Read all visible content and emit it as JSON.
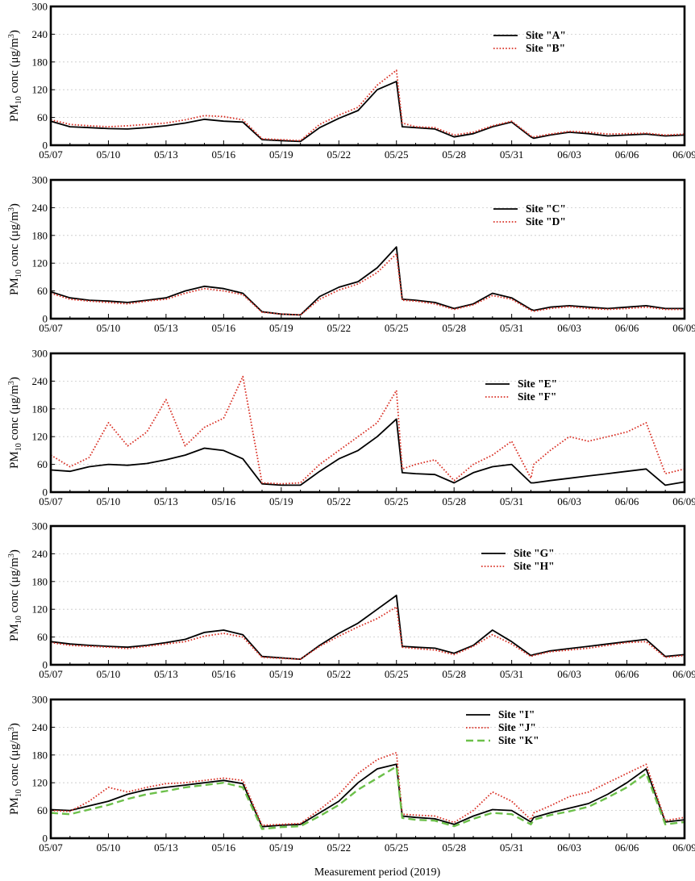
{
  "figure": {
    "x_axis_title": "Measurement period (2019)",
    "y_axis_label": {
      "main": "PM",
      "sub": "10",
      "rest": " conc (μg/m",
      "sup": "3",
      "end": ")"
    }
  },
  "colors": {
    "solid": "#000000",
    "dotted": "#d93025",
    "dashed": "#6cc04a"
  },
  "chart_data": [
    {
      "type": "line",
      "ylim": [
        0,
        300
      ],
      "yticks": [
        0,
        60,
        120,
        180,
        240,
        300
      ],
      "x_tick_labels": [
        "05/07",
        "05/10",
        "05/13",
        "05/16",
        "05/19",
        "05/22",
        "05/25",
        "05/28",
        "05/31",
        "06/03",
        "06/06",
        "06/09"
      ],
      "x_domain_days": [
        0,
        33
      ],
      "grid": "horizontal dotted",
      "legend": "top-right",
      "series": [
        {
          "name": "Site \"A\"",
          "style": "solid",
          "days": [
            0,
            1,
            2,
            3,
            4,
            5,
            6,
            7,
            8,
            9,
            10,
            11,
            12,
            13,
            14,
            15,
            16,
            17,
            18,
            18.3,
            19,
            20,
            21,
            22,
            23,
            24,
            25,
            25.15,
            26,
            27,
            28,
            29,
            30,
            31,
            32,
            33
          ],
          "values": [
            52,
            40,
            38,
            36,
            35,
            38,
            42,
            48,
            56,
            52,
            50,
            12,
            10,
            8,
            38,
            58,
            75,
            120,
            138,
            40,
            38,
            35,
            18,
            25,
            40,
            50,
            18,
            15,
            22,
            28,
            25,
            20,
            22,
            24,
            20,
            22
          ]
        },
        {
          "name": "Site \"B\"",
          "style": "dotted",
          "days": [
            0,
            1,
            2,
            3,
            4,
            5,
            6,
            7,
            8,
            9,
            10,
            11,
            12,
            13,
            14,
            15,
            16,
            17,
            18,
            18.3,
            19,
            20,
            21,
            22,
            23,
            24,
            25,
            25.15,
            26,
            27,
            28,
            29,
            30,
            31,
            32,
            33
          ],
          "values": [
            55,
            45,
            42,
            40,
            42,
            45,
            48,
            55,
            64,
            62,
            55,
            14,
            12,
            10,
            45,
            65,
            82,
            130,
            162,
            48,
            40,
            38,
            22,
            28,
            42,
            52,
            20,
            18,
            24,
            30,
            28,
            24,
            25,
            26,
            22,
            24
          ]
        }
      ]
    },
    {
      "type": "line",
      "ylim": [
        0,
        300
      ],
      "yticks": [
        0,
        60,
        120,
        180,
        240,
        300
      ],
      "x_tick_labels": [
        "05/07",
        "05/10",
        "05/13",
        "05/16",
        "05/19",
        "05/22",
        "05/25",
        "05/28",
        "05/31",
        "06/03",
        "06/06",
        "06/09"
      ],
      "x_domain_days": [
        0,
        33
      ],
      "grid": "horizontal dotted",
      "legend": "top-right",
      "series": [
        {
          "name": "Site \"C\"",
          "style": "solid",
          "days": [
            0,
            1,
            2,
            3,
            4,
            5,
            6,
            7,
            8,
            9,
            10,
            11,
            12,
            13,
            14,
            15,
            16,
            17,
            18,
            18.3,
            19,
            20,
            21,
            22,
            23,
            24,
            25,
            25.15,
            26,
            27,
            28,
            29,
            30,
            31,
            32,
            33
          ],
          "values": [
            58,
            45,
            40,
            38,
            35,
            40,
            45,
            60,
            70,
            65,
            55,
            15,
            10,
            8,
            48,
            68,
            80,
            110,
            155,
            42,
            40,
            35,
            22,
            32,
            55,
            45,
            20,
            18,
            25,
            28,
            25,
            22,
            25,
            28,
            22,
            22
          ]
        },
        {
          "name": "Site \"D\"",
          "style": "dotted",
          "days": [
            0,
            1,
            2,
            3,
            4,
            5,
            6,
            7,
            8,
            9,
            10,
            11,
            12,
            13,
            14,
            15,
            16,
            17,
            18,
            18.3,
            19,
            20,
            21,
            22,
            23,
            24,
            25,
            25.15,
            26,
            27,
            28,
            29,
            30,
            31,
            32,
            33
          ],
          "values": [
            55,
            42,
            38,
            35,
            32,
            38,
            42,
            55,
            65,
            60,
            52,
            14,
            10,
            8,
            42,
            62,
            75,
            100,
            140,
            40,
            38,
            32,
            20,
            30,
            50,
            42,
            18,
            16,
            22,
            26,
            22,
            20,
            22,
            25,
            20,
            20
          ]
        }
      ]
    },
    {
      "type": "line",
      "ylim": [
        0,
        300
      ],
      "yticks": [
        0,
        60,
        120,
        180,
        240,
        300
      ],
      "x_tick_labels": [
        "05/07",
        "05/10",
        "05/13",
        "05/16",
        "05/19",
        "05/22",
        "05/25",
        "05/28",
        "05/31",
        "06/03",
        "06/06",
        "06/09"
      ],
      "x_domain_days": [
        0,
        33
      ],
      "grid": "horizontal dotted",
      "legend": "top-right",
      "series": [
        {
          "name": "Site \"E\"",
          "style": "solid",
          "days": [
            0,
            1,
            2,
            3,
            4,
            5,
            6,
            7,
            8,
            9,
            10,
            11,
            12,
            13,
            14,
            15,
            16,
            17,
            18,
            18.3,
            19,
            20,
            21,
            22,
            23,
            24,
            25,
            25.15,
            26,
            27,
            28,
            29,
            30,
            31,
            32,
            33
          ],
          "values": [
            48,
            45,
            55,
            60,
            58,
            62,
            70,
            80,
            95,
            90,
            72,
            18,
            15,
            15,
            45,
            72,
            90,
            120,
            158,
            42,
            40,
            38,
            20,
            42,
            55,
            60,
            20,
            20,
            25,
            30,
            35,
            40,
            45,
            50,
            15,
            22
          ]
        },
        {
          "name": "Site \"F\"",
          "style": "dotted",
          "days": [
            0,
            1,
            2,
            3,
            4,
            5,
            6,
            7,
            8,
            9,
            10,
            11,
            12,
            13,
            14,
            15,
            16,
            17,
            18,
            18.3,
            19,
            20,
            21,
            22,
            23,
            24,
            25,
            25.15,
            26,
            27,
            28,
            29,
            30,
            31,
            32,
            33
          ],
          "values": [
            80,
            55,
            75,
            150,
            100,
            130,
            200,
            100,
            140,
            160,
            250,
            20,
            18,
            20,
            60,
            90,
            120,
            150,
            220,
            50,
            60,
            70,
            25,
            60,
            80,
            110,
            30,
            60,
            90,
            120,
            110,
            120,
            130,
            150,
            40,
            50
          ]
        }
      ]
    },
    {
      "type": "line",
      "ylim": [
        0,
        300
      ],
      "yticks": [
        0,
        60,
        120,
        180,
        240,
        300
      ],
      "x_tick_labels": [
        "05/07",
        "05/10",
        "05/13",
        "05/16",
        "05/19",
        "05/22",
        "05/25",
        "05/28",
        "05/31",
        "06/03",
        "06/06",
        "06/09"
      ],
      "x_domain_days": [
        0,
        33
      ],
      "grid": "horizontal dotted",
      "legend": "top-right",
      "series": [
        {
          "name": "Site \"G\"",
          "style": "solid",
          "days": [
            0,
            1,
            2,
            3,
            4,
            5,
            6,
            7,
            8,
            9,
            10,
            11,
            12,
            13,
            14,
            15,
            16,
            17,
            18,
            18.3,
            19,
            20,
            21,
            22,
            23,
            24,
            25,
            25.15,
            26,
            27,
            28,
            29,
            30,
            31,
            32,
            33
          ],
          "values": [
            50,
            45,
            42,
            40,
            38,
            42,
            48,
            55,
            70,
            75,
            65,
            18,
            15,
            12,
            42,
            68,
            90,
            120,
            150,
            40,
            38,
            36,
            25,
            42,
            75,
            50,
            20,
            22,
            30,
            35,
            40,
            45,
            50,
            55,
            18,
            22
          ]
        },
        {
          "name": "Site \"H\"",
          "style": "dotted",
          "days": [
            0,
            1,
            2,
            3,
            4,
            5,
            6,
            7,
            8,
            9,
            10,
            11,
            12,
            13,
            14,
            15,
            16,
            17,
            18,
            18.3,
            19,
            20,
            21,
            22,
            23,
            24,
            25,
            25.15,
            26,
            27,
            28,
            29,
            30,
            31,
            32,
            33
          ],
          "values": [
            48,
            42,
            40,
            38,
            35,
            40,
            45,
            50,
            62,
            68,
            60,
            16,
            14,
            12,
            40,
            62,
            82,
            100,
            125,
            38,
            35,
            32,
            22,
            40,
            65,
            45,
            18,
            20,
            28,
            32,
            36,
            42,
            48,
            50,
            16,
            20
          ]
        }
      ]
    },
    {
      "type": "line",
      "ylim": [
        0,
        300
      ],
      "yticks": [
        0,
        60,
        120,
        180,
        240,
        300
      ],
      "x_tick_labels": [
        "05/07",
        "05/10",
        "05/13",
        "05/16",
        "05/19",
        "05/22",
        "05/25",
        "05/28",
        "05/31",
        "06/03",
        "06/06",
        "06/09"
      ],
      "x_domain_days": [
        0,
        33
      ],
      "grid": "horizontal dotted",
      "legend": "top-right",
      "series": [
        {
          "name": "Site \"I\"",
          "style": "solid",
          "days": [
            0,
            1,
            2,
            3,
            4,
            5,
            6,
            7,
            8,
            9,
            10,
            11,
            12,
            13,
            14,
            15,
            16,
            17,
            18,
            18.3,
            19,
            20,
            21,
            22,
            23,
            24,
            25,
            25.15,
            26,
            27,
            28,
            29,
            30,
            31,
            32,
            33
          ],
          "values": [
            62,
            60,
            70,
            80,
            95,
            105,
            110,
            115,
            120,
            125,
            118,
            25,
            28,
            30,
            55,
            80,
            120,
            150,
            160,
            48,
            45,
            42,
            30,
            48,
            62,
            60,
            35,
            45,
            55,
            65,
            75,
            95,
            120,
            150,
            35,
            40
          ]
        },
        {
          "name": "Site \"J\"",
          "style": "dotted",
          "days": [
            0,
            1,
            2,
            3,
            4,
            5,
            6,
            7,
            8,
            9,
            10,
            11,
            12,
            13,
            14,
            15,
            16,
            17,
            18,
            18.3,
            19,
            20,
            21,
            22,
            23,
            24,
            25,
            25.15,
            26,
            27,
            28,
            29,
            30,
            31,
            32,
            33
          ],
          "values": [
            60,
            58,
            80,
            110,
            100,
            110,
            118,
            120,
            125,
            130,
            125,
            28,
            30,
            32,
            62,
            95,
            140,
            170,
            185,
            52,
            50,
            48,
            34,
            60,
            100,
            80,
            40,
            55,
            70,
            90,
            100,
            120,
            140,
            160,
            38,
            45
          ]
        },
        {
          "name": "Site \"K\"",
          "style": "dashed",
          "days": [
            0,
            1,
            2,
            3,
            4,
            5,
            6,
            7,
            8,
            9,
            10,
            11,
            12,
            13,
            14,
            15,
            16,
            17,
            18,
            18.3,
            19,
            20,
            21,
            22,
            23,
            24,
            25,
            25.15,
            26,
            27,
            28,
            29,
            30,
            31,
            32,
            33
          ],
          "values": [
            55,
            52,
            62,
            72,
            85,
            95,
            102,
            110,
            115,
            120,
            110,
            20,
            24,
            26,
            48,
            72,
            105,
            130,
            155,
            44,
            40,
            38,
            26,
            42,
            55,
            52,
            30,
            40,
            50,
            58,
            68,
            88,
            110,
            140,
            30,
            35
          ]
        }
      ]
    }
  ]
}
